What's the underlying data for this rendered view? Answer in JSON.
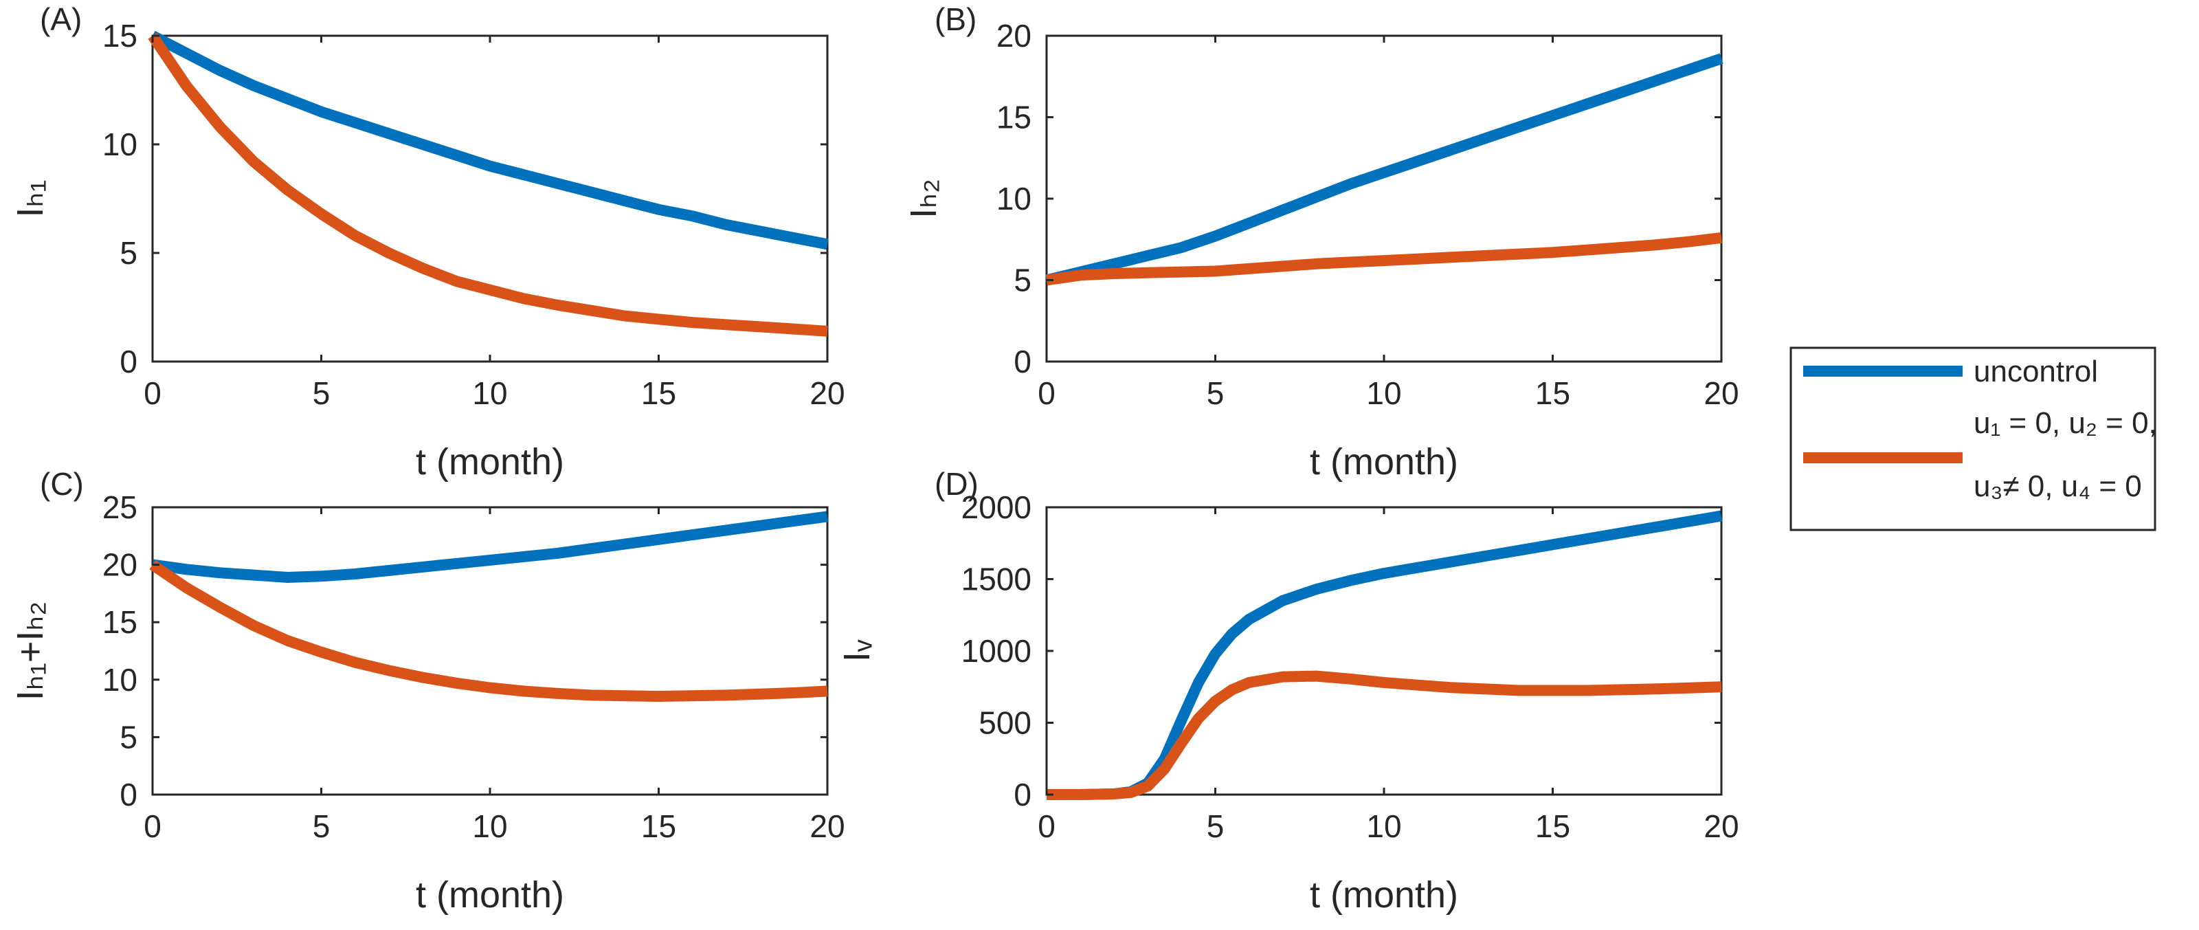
{
  "colors": {
    "uncontrol": "#0072BD",
    "controlled": "#D95319"
  },
  "legend": {
    "placement": "right-center",
    "entries": [
      {
        "label_lines": [
          "uncontrol"
        ],
        "color": "#0072BD"
      },
      {
        "label_lines": [
          "u₁ = 0, u₂ = 0,",
          "u₃≠ 0, u₄ = 0"
        ],
        "color": "#D95319"
      }
    ]
  },
  "chart_data": [
    {
      "type": "line",
      "panel_label": "(A)",
      "xlabel": "t (month)",
      "ylabel": "Iₕ₁",
      "xlim": [
        0,
        20
      ],
      "ylim": [
        0,
        15
      ],
      "xticks": [
        0,
        5,
        10,
        15,
        20
      ],
      "yticks": [
        0,
        5,
        10,
        15
      ],
      "x": [
        0,
        1,
        2,
        3,
        4,
        5,
        6,
        7,
        8,
        9,
        10,
        11,
        12,
        13,
        14,
        15,
        16,
        17,
        18,
        19,
        20
      ],
      "series": [
        {
          "name": "uncontrol",
          "values": [
            15.0,
            14.2,
            13.4,
            12.7,
            12.1,
            11.5,
            11.0,
            10.5,
            10.0,
            9.5,
            9.0,
            8.6,
            8.2,
            7.8,
            7.4,
            7.0,
            6.7,
            6.3,
            6.0,
            5.7,
            5.4
          ]
        },
        {
          "name": "u1 = 0, u2 = 0, u3 ≠ 0, u4 = 0",
          "values": [
            15.0,
            12.7,
            10.8,
            9.2,
            7.9,
            6.8,
            5.8,
            5.0,
            4.3,
            3.7,
            3.3,
            2.9,
            2.6,
            2.35,
            2.1,
            1.95,
            1.8,
            1.7,
            1.6,
            1.5,
            1.4
          ]
        }
      ]
    },
    {
      "type": "line",
      "panel_label": "(B)",
      "xlabel": "t (month)",
      "ylabel": "Iₕ₂",
      "xlim": [
        0,
        20
      ],
      "ylim": [
        0,
        20
      ],
      "xticks": [
        0,
        5,
        10,
        15,
        20
      ],
      "yticks": [
        0,
        5,
        10,
        15,
        20
      ],
      "x": [
        0,
        1,
        2,
        3,
        4,
        5,
        6,
        7,
        8,
        9,
        10,
        11,
        12,
        13,
        14,
        15,
        16,
        17,
        18,
        19,
        20
      ],
      "series": [
        {
          "name": "uncontrol",
          "values": [
            5.0,
            5.5,
            6.0,
            6.5,
            7.0,
            7.7,
            8.5,
            9.3,
            10.1,
            10.9,
            11.6,
            12.3,
            13.0,
            13.7,
            14.4,
            15.1,
            15.8,
            16.5,
            17.2,
            17.9,
            18.6
          ]
        },
        {
          "name": "u1 = 0, u2 = 0, u3 ≠ 0, u4 = 0",
          "values": [
            5.0,
            5.3,
            5.4,
            5.45,
            5.5,
            5.55,
            5.7,
            5.85,
            6.0,
            6.1,
            6.2,
            6.3,
            6.4,
            6.5,
            6.6,
            6.7,
            6.85,
            7.0,
            7.15,
            7.35,
            7.6
          ]
        }
      ]
    },
    {
      "type": "line",
      "panel_label": "(C)",
      "xlabel": "t (month)",
      "ylabel": "Iₕ₁+Iₕ₂",
      "xlim": [
        0,
        20
      ],
      "ylim": [
        0,
        25
      ],
      "xticks": [
        0,
        5,
        10,
        15,
        20
      ],
      "yticks": [
        0,
        5,
        10,
        15,
        20,
        25
      ],
      "x": [
        0,
        1,
        2,
        3,
        4,
        5,
        6,
        7,
        8,
        9,
        10,
        11,
        12,
        13,
        14,
        15,
        16,
        17,
        18,
        19,
        20
      ],
      "series": [
        {
          "name": "uncontrol",
          "values": [
            20.0,
            19.6,
            19.3,
            19.1,
            18.9,
            19.0,
            19.2,
            19.5,
            19.8,
            20.1,
            20.4,
            20.7,
            21.0,
            21.4,
            21.8,
            22.2,
            22.6,
            23.0,
            23.4,
            23.8,
            24.2
          ]
        },
        {
          "name": "u1 = 0, u2 = 0, u3 ≠ 0, u4 = 0",
          "values": [
            20.0,
            18.0,
            16.3,
            14.7,
            13.4,
            12.4,
            11.5,
            10.8,
            10.2,
            9.7,
            9.3,
            9.0,
            8.8,
            8.65,
            8.6,
            8.55,
            8.6,
            8.65,
            8.75,
            8.85,
            9.0
          ]
        }
      ]
    },
    {
      "type": "line",
      "panel_label": "(D)",
      "xlabel": "t (month)",
      "ylabel": "Iᵥ",
      "xlim": [
        0,
        20
      ],
      "ylim": [
        0,
        2000
      ],
      "xticks": [
        0,
        5,
        10,
        15,
        20
      ],
      "yticks": [
        0,
        500,
        1000,
        1500,
        2000
      ],
      "x": [
        0,
        1,
        2,
        2.5,
        3,
        3.5,
        4,
        4.5,
        5,
        5.5,
        6,
        7,
        8,
        9,
        10,
        12,
        14,
        16,
        18,
        20
      ],
      "series": [
        {
          "name": "uncontrol",
          "values": [
            0,
            0,
            5,
            20,
            80,
            250,
            520,
            780,
            980,
            1120,
            1220,
            1350,
            1430,
            1490,
            1540,
            1620,
            1700,
            1780,
            1860,
            1940
          ]
        },
        {
          "name": "u1 = 0, u2 = 0, u3 ≠ 0, u4 = 0",
          "values": [
            0,
            0,
            5,
            15,
            60,
            180,
            360,
            530,
            650,
            730,
            780,
            820,
            825,
            805,
            780,
            745,
            725,
            725,
            735,
            750
          ]
        }
      ]
    }
  ]
}
